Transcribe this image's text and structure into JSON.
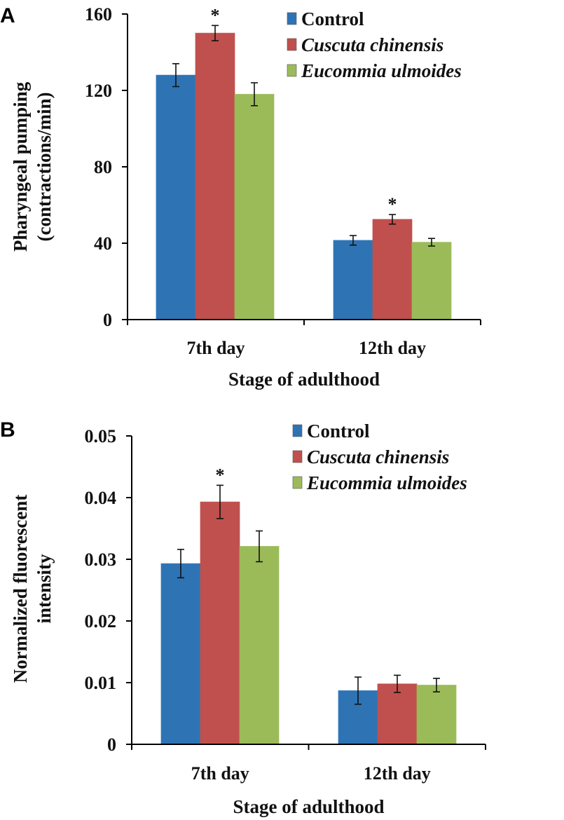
{
  "chart_data": [
    {
      "panel": "A",
      "type": "bar",
      "categories": [
        "7th day",
        "12th day"
      ],
      "xlabel": "Stage of adulthood",
      "ylabel": [
        "Pharyngeal pumping",
        "(contractions/min)"
      ],
      "ylim": [
        0,
        160
      ],
      "yticks": [
        "0",
        "40",
        "80",
        "120",
        "160"
      ],
      "ytick_values": [
        0,
        40,
        80,
        120,
        160
      ],
      "grid": false,
      "legend_position": "top-right",
      "series": [
        {
          "name": "Control",
          "italic": false,
          "color": "#2e74b5",
          "values": [
            128,
            41.5
          ],
          "errors": [
            6,
            2.5
          ]
        },
        {
          "name": "Cuscuta chinensis",
          "italic": true,
          "color": "#c0504d",
          "values": [
            150,
            52.5
          ],
          "errors": [
            4,
            2.5
          ]
        },
        {
          "name": "Eucommia ulmoides",
          "italic": true,
          "color": "#9bbb59",
          "values": [
            118,
            40.5
          ],
          "errors": [
            6,
            2
          ]
        }
      ],
      "annotations": [
        {
          "text": "*",
          "category": "7th day",
          "series": "Cuscuta chinensis"
        },
        {
          "text": "*",
          "category": "12th day",
          "series": "Cuscuta chinensis"
        }
      ]
    },
    {
      "panel": "B",
      "type": "bar",
      "categories": [
        "7th day",
        "12th day"
      ],
      "xlabel": "Stage of adulthood",
      "ylabel": [
        "Normalized fluorescent",
        "intensity"
      ],
      "ylim": [
        0,
        0.05
      ],
      "yticks": [
        "0",
        "0.01",
        "0.02",
        "0.03",
        "0.04",
        "0.05"
      ],
      "ytick_values": [
        0,
        0.01,
        0.02,
        0.03,
        0.04,
        0.05
      ],
      "grid": false,
      "legend_position": "top-right",
      "series": [
        {
          "name": "Control",
          "italic": false,
          "color": "#2e74b5",
          "values": [
            0.0293,
            0.0087
          ],
          "errors": [
            0.0023,
            0.0022
          ]
        },
        {
          "name": "Cuscuta chinensis",
          "italic": true,
          "color": "#c0504d",
          "values": [
            0.0393,
            0.0098
          ],
          "errors": [
            0.0027,
            0.0014
          ]
        },
        {
          "name": "Eucommia ulmoides",
          "italic": true,
          "color": "#9bbb59",
          "values": [
            0.0321,
            0.0096
          ],
          "errors": [
            0.0025,
            0.0011
          ]
        }
      ],
      "annotations": [
        {
          "text": "*",
          "category": "7th day",
          "series": "Cuscuta chinensis"
        }
      ]
    }
  ]
}
